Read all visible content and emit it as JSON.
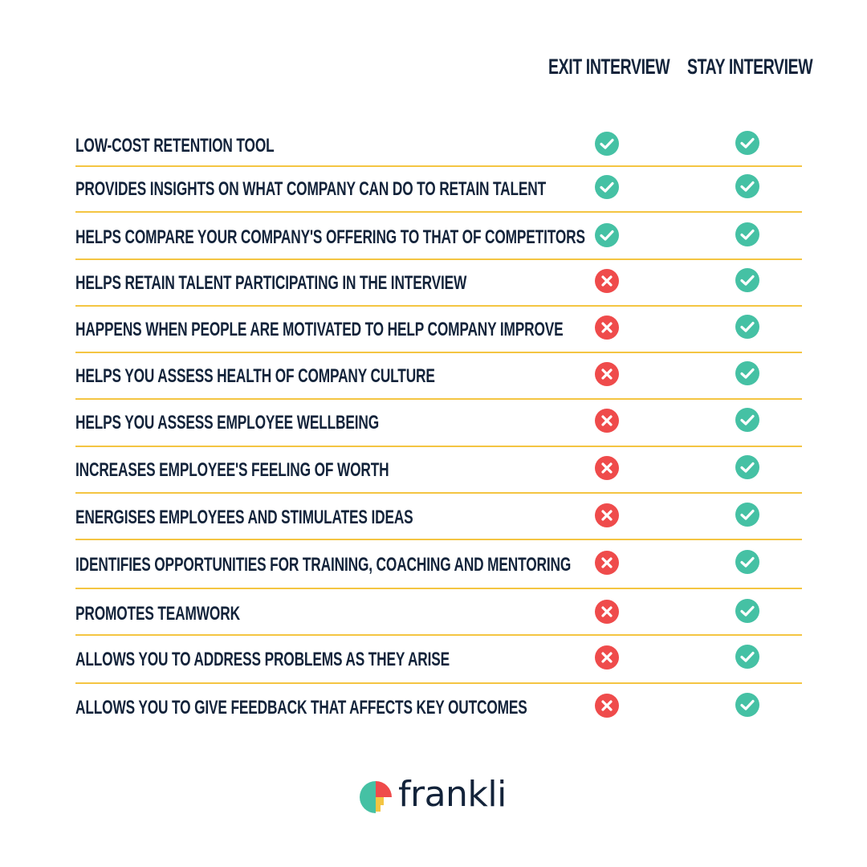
{
  "columns": {
    "exit": "EXIT INTERVIEW",
    "stay": "STAY INTERVIEW"
  },
  "colors": {
    "check": "#45c1a4",
    "cross": "#ef4b4b",
    "divider": "#f4c542",
    "text": "#13233a"
  },
  "rows": [
    {
      "label": "LOW-COST RETENTION TOOL",
      "exit": true,
      "stay": true
    },
    {
      "label": "PROVIDES INSIGHTS ON WHAT COMPANY CAN DO TO RETAIN TALENT",
      "exit": true,
      "stay": true
    },
    {
      "label": "HELPS COMPARE YOUR COMPANY'S OFFERING TO THAT OF COMPETITORS",
      "exit": true,
      "stay": true
    },
    {
      "label": "HELPS RETAIN TALENT PARTICIPATING IN THE INTERVIEW",
      "exit": false,
      "stay": true
    },
    {
      "label": "HAPPENS WHEN PEOPLE ARE MOTIVATED TO HELP COMPANY IMPROVE",
      "exit": false,
      "stay": true
    },
    {
      "label": "HELPS YOU ASSESS HEALTH OF COMPANY CULTURE",
      "exit": false,
      "stay": true
    },
    {
      "label": "HELPS YOU ASSESS EMPLOYEE WELLBEING",
      "exit": false,
      "stay": true
    },
    {
      "label": "INCREASES EMPLOYEE'S FEELING OF WORTH",
      "exit": false,
      "stay": true
    },
    {
      "label": "ENERGISES EMPLOYEES AND STIMULATES IDEAS",
      "exit": false,
      "stay": true
    },
    {
      "label": "IDENTIFIES OPPORTUNITIES FOR TRAINING, COACHING AND MENTORING",
      "exit": false,
      "stay": true
    },
    {
      "label": "PROMOTES TEAMWORK",
      "exit": false,
      "stay": true
    },
    {
      "label": "ALLOWS YOU TO ADDRESS PROBLEMS AS THEY ARISE",
      "exit": false,
      "stay": true
    },
    {
      "label": "ALLOWS YOU TO GIVE FEEDBACK THAT AFFECTS KEY OUTCOMES",
      "exit": false,
      "stay": true
    }
  ],
  "logo": {
    "text": "frankli",
    "icon": "frankli-logo-icon"
  }
}
